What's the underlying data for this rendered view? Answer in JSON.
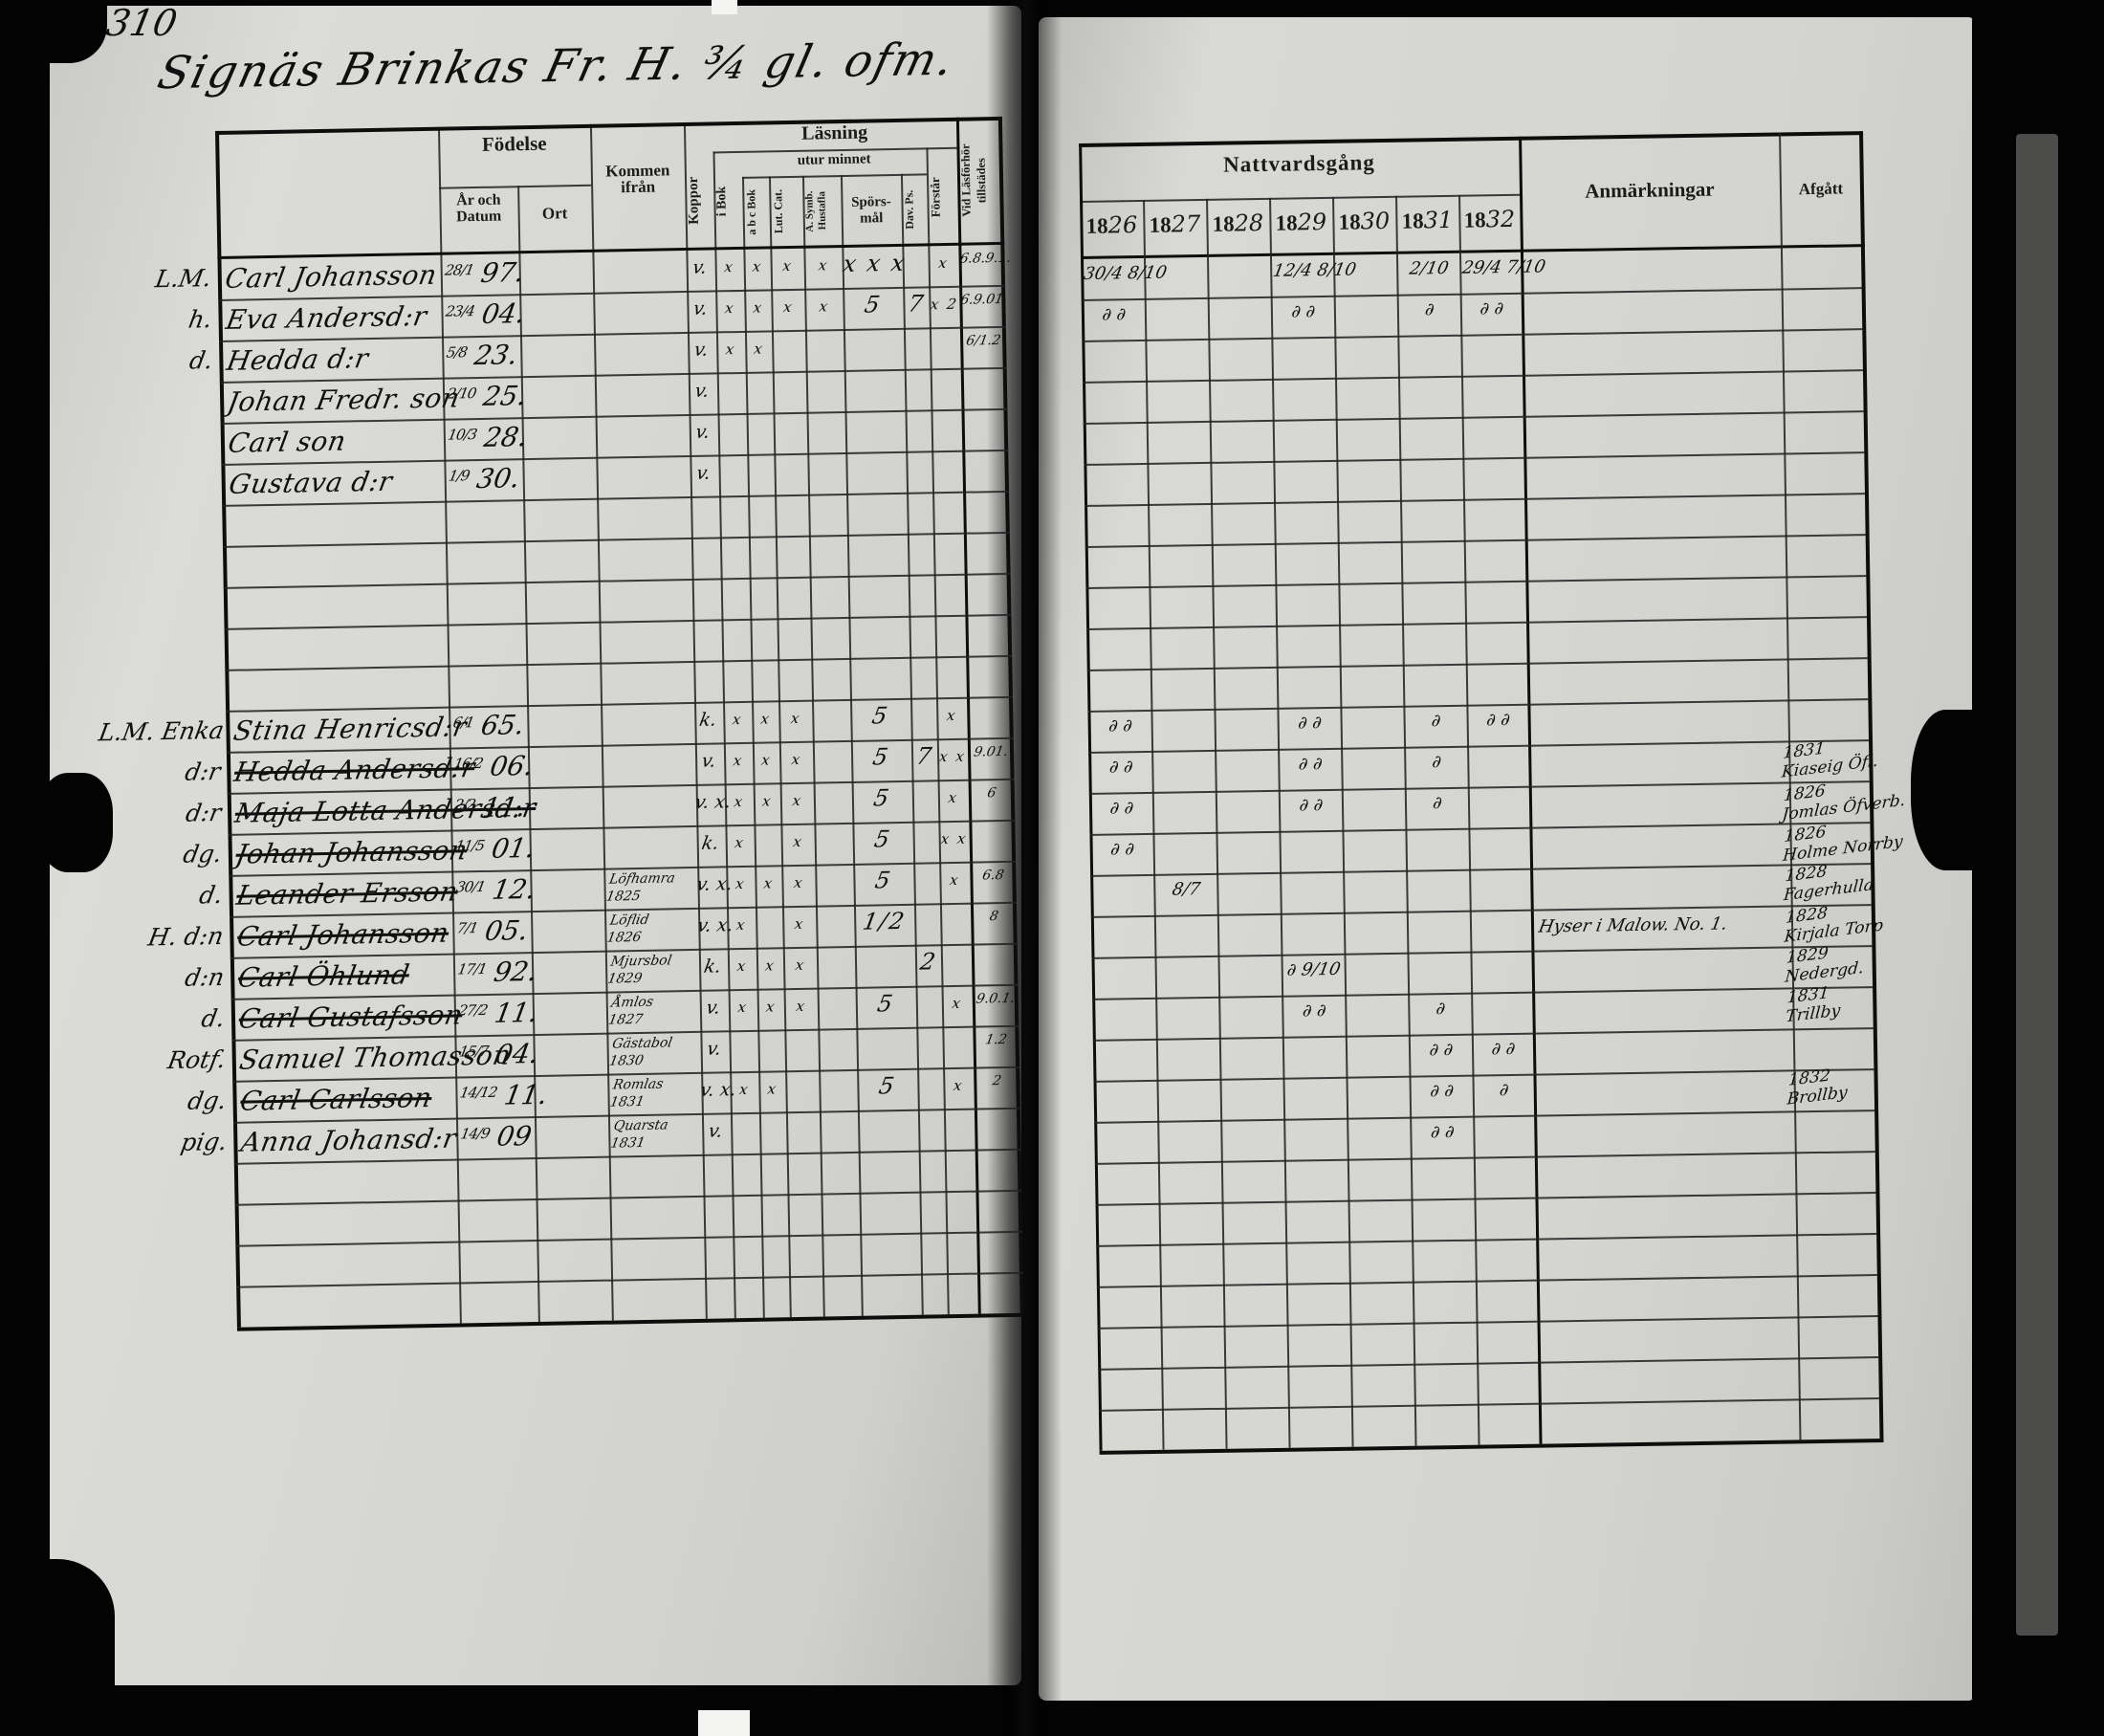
{
  "scan": {
    "page_number": "310",
    "title": "Signäs Brinkas Fr. H. ¾ gl. ofm."
  },
  "left_table": {
    "headers": {
      "fodelse": "Födelse",
      "ar_och_datum": "År och Datum",
      "ort": "Ort",
      "kommen_ifran": "Kommen ifrån",
      "koppor": "Koppor",
      "lasning": "Läsning",
      "i_bok": "i Bok",
      "utur_minnet": "utur minnet",
      "abc_bok": "a b c Bok",
      "lut_cat": "Lut. Cat.",
      "symb_hustafla": "A. Symb. Hustafla",
      "sporsmal": "Spörs-mål",
      "dav_ps": "Dav. Ps.",
      "forstar": "Förstår",
      "vid_lasforhor": "Vid Läsförhör tillstädes"
    }
  },
  "right_table": {
    "header": "Nattvardsgång",
    "years": [
      "1826",
      "1827",
      "1828",
      "1829",
      "1830",
      "1831",
      "1832"
    ],
    "anmarkningar": "Anmärkningar",
    "afgatt": "Afgått"
  },
  "rows": [
    {
      "row": 0,
      "margin": "L.M.",
      "name": "Carl Johansson",
      "struck": false,
      "born": "28/1|97.",
      "from": "",
      "koppor": "v.",
      "marks": {
        "i_bok": "x",
        "abc_bok": "x",
        "lut_cat": "x",
        "symb": "x",
        "spors": "x x x",
        "dav": "",
        "forstar": "x"
      },
      "vid": "6.8.9.1.",
      "natt": {
        "1826": "30/4 8/10",
        "1829": "12/4 8/10",
        "1831": "2/10",
        "1832": "29/4 7/10"
      },
      "anm": "",
      "afgatt": ""
    },
    {
      "row": 1,
      "margin": "h.",
      "name": "Eva Andersd:r",
      "struck": false,
      "born": "23/4|04.",
      "from": "",
      "koppor": "v.",
      "marks": {
        "i_bok": "x",
        "abc_bok": "x",
        "lut_cat": "x",
        "symb": "x",
        "spors": "5",
        "dav": "7",
        "forstar": "x 2"
      },
      "vid": "6.9.01.",
      "natt": {
        "1826": "∂ ∂",
        "1829": "∂ ∂",
        "1831": "∂",
        "1832": "∂ ∂"
      },
      "anm": "",
      "afgatt": ""
    },
    {
      "row": 2,
      "margin": "d.",
      "name": "Hedda d:r",
      "struck": false,
      "born": "5/8|23.",
      "from": "",
      "koppor": "v.",
      "marks": {
        "i_bok": "x",
        "abc_bok": "x"
      },
      "vid": "6/1.2",
      "natt": {},
      "anm": "",
      "afgatt": ""
    },
    {
      "row": 3,
      "margin": "",
      "name": "Johan Fredr. son",
      "struck": false,
      "born": "2/10|25.",
      "from": "",
      "koppor": "v.",
      "marks": {},
      "vid": "",
      "natt": {},
      "anm": "",
      "afgatt": ""
    },
    {
      "row": 4,
      "margin": "",
      "name": "Carl son",
      "struck": false,
      "born": "10/3|28.",
      "from": "",
      "koppor": "v.",
      "marks": {},
      "vid": "",
      "natt": {},
      "anm": "",
      "afgatt": ""
    },
    {
      "row": 5,
      "margin": "",
      "name": "Gustava d:r",
      "struck": false,
      "born": "1/9|30.",
      "from": "",
      "koppor": "v.",
      "marks": {},
      "vid": "",
      "natt": {},
      "anm": "",
      "afgatt": ""
    },
    {
      "row": 11,
      "margin": "L.M. Enka",
      "name": "Stina Henricsd:r",
      "struck": false,
      "born": "6/1|65.",
      "from": "",
      "koppor": "k.",
      "marks": {
        "i_bok": "x",
        "abc_bok": "x",
        "lut_cat": "x",
        "spors": "5",
        "forstar": "x"
      },
      "vid": "",
      "natt": {
        "1826": "∂ ∂",
        "1829": "∂ ∂",
        "1831": "∂",
        "1832": "∂ ∂"
      },
      "anm": "",
      "afgatt": ""
    },
    {
      "row": 12,
      "margin": "d:r",
      "name": "Hedda Andersd:r",
      "struck": true,
      "born": "16/2|06.",
      "from": "",
      "koppor": "v.",
      "marks": {
        "i_bok": "x",
        "abc_bok": "x",
        "lut_cat": "x",
        "spors": "5",
        "dav": "7",
        "forstar": "x x"
      },
      "vid": "9.01.",
      "natt": {
        "1826": "∂ ∂",
        "1829": "∂ ∂",
        "1831": "∂"
      },
      "anm": "",
      "afgatt": "1831|Kiaseig Öfl."
    },
    {
      "row": 13,
      "margin": "d:r",
      "name": "Maja Lotta Andersd:r",
      "struck": true,
      "born": "2/2|11.",
      "from": "",
      "koppor": "v. x.",
      "marks": {
        "i_bok": "x",
        "abc_bok": "x",
        "lut_cat": "x",
        "spors": "5",
        "forstar": "x"
      },
      "vid": "6",
      "natt": {
        "1826": "∂ ∂",
        "1829": "∂ ∂",
        "1831": "∂"
      },
      "anm": "",
      "afgatt": "1826|Jomlas Öfverb."
    },
    {
      "row": 14,
      "margin": "dg.",
      "name": "Johan Johansson",
      "struck": true,
      "born": "11/5|01.",
      "from": "",
      "koppor": "k.",
      "marks": {
        "i_bok": "x",
        "lut_cat": "x",
        "spors": "5",
        "forstar": "x x"
      },
      "vid": "",
      "natt": {
        "1826": "∂ ∂"
      },
      "anm": "",
      "afgatt": "1826|Holme Norrby"
    },
    {
      "row": 15,
      "margin": "d.",
      "name": "Leander Ersson",
      "struck": true,
      "born": "30/1|12.",
      "from": "Löfhamra|1825",
      "koppor": "v. x.",
      "marks": {
        "i_bok": "x",
        "abc_bok": "x",
        "lut_cat": "x",
        "spors": "5",
        "forstar": "x"
      },
      "vid": "6.8",
      "natt": {
        "1827": "8/7"
      },
      "anm": "",
      "afgatt": "1828|Fagerhulla"
    },
    {
      "row": 16,
      "margin": "H. d:n",
      "name": "Carl Johansson",
      "struck": true,
      "born": "7/1|05.",
      "from": "Löflid|1826",
      "koppor": "v. x.",
      "marks": {
        "i_bok": "x",
        "lut_cat": "x",
        "spors": "1/2"
      },
      "vid": "8",
      "natt": {},
      "anm": "Hyser i Malow. No. 1.",
      "afgatt": "1828|Kirjala Torp"
    },
    {
      "row": 17,
      "margin": "d:n",
      "name": "Carl Öhlund",
      "struck": true,
      "born": "17/1|92.",
      "from": "Mjursbol|1829",
      "koppor": "k.",
      "marks": {
        "i_bok": "x",
        "abc_bok": "x",
        "lut_cat": "x",
        "dav": "2"
      },
      "vid": "",
      "natt": {
        "1829": "∂ 9/10"
      },
      "anm": "",
      "afgatt": "1829|Nedergd."
    },
    {
      "row": 18,
      "margin": "d.",
      "name": "Carl Gustafsson",
      "struck": true,
      "born": "27/2|11.",
      "from": "Åmlos|1827",
      "koppor": "v.",
      "marks": {
        "i_bok": "x",
        "abc_bok": "x",
        "lut_cat": "x",
        "spors": "5",
        "forstar": "x"
      },
      "vid": "9.0.1.",
      "natt": {
        "1829": "∂ ∂",
        "1831": "∂"
      },
      "anm": "",
      "afgatt": "1831|Trillby"
    },
    {
      "row": 19,
      "margin": "Rotf.",
      "name": "Samuel Thomasson",
      "struck": false,
      "born": "15/7|04.",
      "from": "Gästabol|1830",
      "koppor": "v.",
      "marks": {},
      "vid": "1.2",
      "natt": {
        "1831": "∂ ∂",
        "1832": "∂ ∂"
      },
      "anm": "",
      "afgatt": ""
    },
    {
      "row": 20,
      "margin": "dg.",
      "name": "Carl Carlsson",
      "struck": true,
      "born": "14/12|11.",
      "from": "Romlas|1831",
      "koppor": "v. x.",
      "marks": {
        "i_bok": "x",
        "abc_bok": "x",
        "spors": "5",
        "forstar": "x"
      },
      "vid": "2",
      "natt": {
        "1831": "∂ ∂",
        "1832": "∂"
      },
      "anm": "",
      "afgatt": "1832|Brollby"
    },
    {
      "row": 21,
      "margin": "pig.",
      "name": "Anna Johansd:r",
      "struck": false,
      "born": "14/9|09",
      "from": "Quarsta|1831",
      "koppor": "v.",
      "marks": {},
      "vid": "",
      "natt": {
        "1831": "∂ ∂"
      },
      "anm": "",
      "afgatt": ""
    }
  ]
}
